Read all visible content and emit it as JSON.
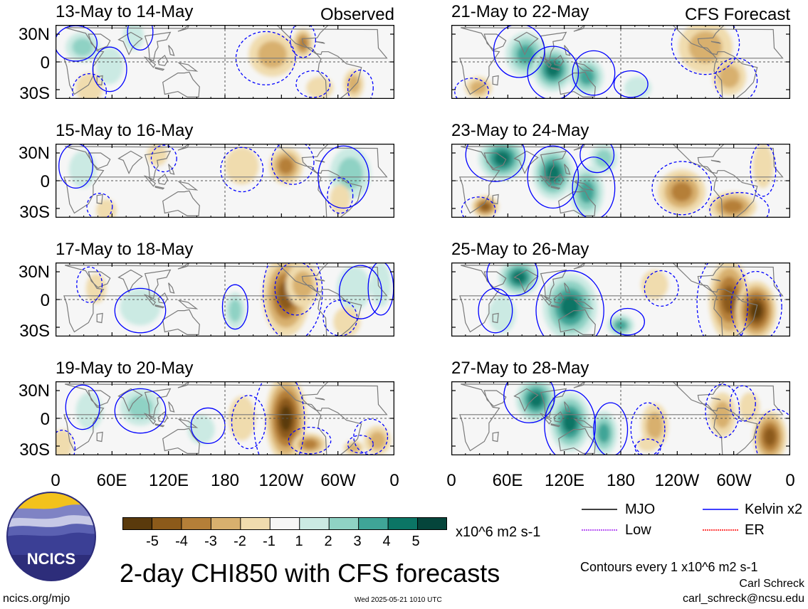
{
  "panels_left_tag": "Observed",
  "panels_right_tag": "CFS Forecast",
  "panels": [
    {
      "title": "13-May to 14-May",
      "col": 0,
      "row": 0
    },
    {
      "title": "15-May to 16-May",
      "col": 0,
      "row": 1
    },
    {
      "title": "17-May to 18-May",
      "col": 0,
      "row": 2
    },
    {
      "title": "19-May to 20-May",
      "col": 0,
      "row": 3
    },
    {
      "title": "21-May to 22-May",
      "col": 1,
      "row": 0
    },
    {
      "title": "23-May to 24-May",
      "col": 1,
      "row": 1
    },
    {
      "title": "25-May to 26-May",
      "col": 1,
      "row": 2
    },
    {
      "title": "27-May to 28-May",
      "col": 1,
      "row": 3
    }
  ],
  "lat_labels": [
    "30N",
    "0",
    "30S"
  ],
  "lon_labels": [
    "0",
    "60E",
    "120E",
    "180",
    "120W",
    "60W",
    "0"
  ],
  "colorbar": {
    "colors": [
      "#5a3a0c",
      "#8c5a1a",
      "#b57f38",
      "#d8b06e",
      "#f0dcae",
      "#f6f6f6",
      "#cbeae3",
      "#8fd2c4",
      "#3fa597",
      "#0b7565",
      "#05453b"
    ],
    "labels": [
      "-5",
      "-4",
      "-3",
      "-2",
      "-1",
      "1",
      "2",
      "3",
      "4",
      "5"
    ],
    "units": "x10^6 m2 s-1"
  },
  "legend": {
    "mjo": {
      "label": "MJO",
      "color": "#000000"
    },
    "kelvin": {
      "label": "Kelvin x2",
      "color": "#0000ff"
    },
    "low": {
      "label": "Low",
      "color": "#a020f0"
    },
    "er": {
      "label": "ER",
      "color": "#ff0000"
    }
  },
  "main_title": "2-day CHI850 with CFS forecasts",
  "contours_note": "Contours every 1 x10^6 m2 s-1",
  "author": "Carl Schreck",
  "email": "carl_schreck@ncsu.edu",
  "website": "ncics.org/mjo",
  "timestamp": "Wed 2025-05-21 1010 UTC",
  "logo_text": "NCICS",
  "anomaly_blobs": [
    [
      [
        0.08,
        0.3,
        0.05,
        0.2,
        2
      ],
      [
        0.16,
        0.55,
        0.04,
        0.25,
        1
      ],
      [
        0.23,
        0.15,
        0.03,
        0.2,
        1
      ],
      [
        0.64,
        0.4,
        0.07,
        0.3,
        -2
      ],
      [
        0.73,
        0.25,
        0.03,
        0.2,
        -3
      ],
      [
        0.88,
        0.8,
        0.03,
        0.2,
        -2
      ],
      [
        0.78,
        0.85,
        0.04,
        0.15,
        -1
      ],
      [
        0.1,
        0.85,
        0.04,
        0.2,
        -1
      ]
    ],
    [
      [
        0.08,
        0.35,
        0.04,
        0.25,
        1
      ],
      [
        0.55,
        0.3,
        0.05,
        0.25,
        -1
      ],
      [
        0.68,
        0.3,
        0.05,
        0.25,
        -3
      ],
      [
        0.87,
        0.4,
        0.06,
        0.35,
        2
      ],
      [
        0.84,
        0.75,
        0.03,
        0.2,
        -1
      ],
      [
        0.3,
        0.15,
        0.03,
        0.15,
        -1
      ],
      [
        0.15,
        0.9,
        0.03,
        0.15,
        -1
      ]
    ],
    [
      [
        0.12,
        0.35,
        0.03,
        0.2,
        -1
      ],
      [
        0.25,
        0.6,
        0.06,
        0.25,
        1
      ],
      [
        0.68,
        0.45,
        0.07,
        0.55,
        -4
      ],
      [
        0.73,
        0.3,
        0.05,
        0.3,
        -2
      ],
      [
        0.53,
        0.65,
        0.03,
        0.25,
        2
      ],
      [
        0.88,
        0.35,
        0.05,
        0.3,
        1
      ],
      [
        0.86,
        0.8,
        0.04,
        0.2,
        -1
      ],
      [
        0.96,
        0.3,
        0.03,
        0.3,
        1
      ]
    ],
    [
      [
        0.1,
        0.4,
        0.04,
        0.25,
        1
      ],
      [
        0.25,
        0.35,
        0.06,
        0.25,
        2
      ],
      [
        0.43,
        0.65,
        0.04,
        0.2,
        1
      ],
      [
        0.68,
        0.5,
        0.06,
        0.6,
        -5
      ],
      [
        0.75,
        0.85,
        0.05,
        0.15,
        -3
      ],
      [
        0.55,
        0.5,
        0.04,
        0.3,
        -1
      ],
      [
        0.95,
        0.8,
        0.04,
        0.2,
        -2
      ],
      [
        0.02,
        0.85,
        0.03,
        0.2,
        -1
      ],
      [
        0.88,
        0.9,
        0.03,
        0.1,
        -2
      ]
    ],
    [
      [
        0.22,
        0.4,
        0.06,
        0.3,
        3
      ],
      [
        0.3,
        0.6,
        0.06,
        0.3,
        4
      ],
      [
        0.4,
        0.7,
        0.05,
        0.25,
        3
      ],
      [
        0.08,
        0.85,
        0.04,
        0.15,
        -2
      ],
      [
        0.75,
        0.3,
        0.08,
        0.35,
        -2
      ],
      [
        0.82,
        0.7,
        0.05,
        0.25,
        -2
      ],
      [
        0.55,
        0.85,
        0.04,
        0.15,
        1
      ]
    ],
    [
      [
        0.15,
        0.2,
        0.07,
        0.3,
        4
      ],
      [
        0.3,
        0.4,
        0.06,
        0.35,
        4
      ],
      [
        0.4,
        0.65,
        0.05,
        0.35,
        3
      ],
      [
        0.1,
        0.85,
        0.04,
        0.15,
        -4
      ],
      [
        0.68,
        0.65,
        0.07,
        0.3,
        -3
      ],
      [
        0.83,
        0.85,
        0.07,
        0.2,
        -3
      ],
      [
        0.45,
        0.2,
        0.04,
        0.2,
        2
      ],
      [
        0.92,
        0.3,
        0.03,
        0.3,
        -1
      ]
    ],
    [
      [
        0.2,
        0.2,
        0.06,
        0.25,
        4
      ],
      [
        0.35,
        0.6,
        0.08,
        0.45,
        4
      ],
      [
        0.5,
        0.85,
        0.04,
        0.15,
        3
      ],
      [
        0.82,
        0.5,
        0.06,
        0.55,
        -4
      ],
      [
        0.9,
        0.65,
        0.06,
        0.4,
        -5
      ],
      [
        0.6,
        0.3,
        0.04,
        0.2,
        -1
      ],
      [
        0.15,
        0.7,
        0.04,
        0.25,
        1
      ]
    ],
    [
      [
        0.25,
        0.25,
        0.06,
        0.3,
        4
      ],
      [
        0.35,
        0.55,
        0.06,
        0.4,
        4
      ],
      [
        0.45,
        0.7,
        0.04,
        0.3,
        3
      ],
      [
        0.6,
        0.6,
        0.04,
        0.3,
        -2
      ],
      [
        0.8,
        0.45,
        0.04,
        0.3,
        -2
      ],
      [
        0.94,
        0.75,
        0.05,
        0.35,
        -4
      ],
      [
        0.88,
        0.35,
        0.03,
        0.2,
        -1
      ],
      [
        0.58,
        0.85,
        0.03,
        0.1,
        -1
      ]
    ]
  ]
}
